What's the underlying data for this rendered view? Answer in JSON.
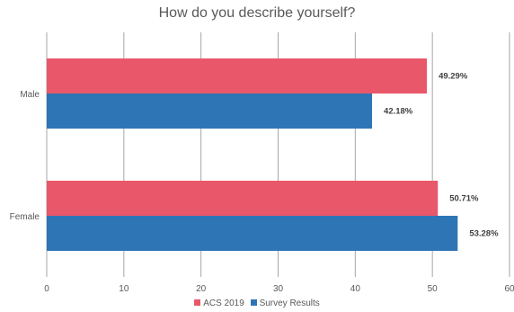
{
  "chart_data": {
    "type": "bar",
    "orientation": "horizontal",
    "title": "How do you describe yourself?",
    "categories": [
      "Male",
      "Female"
    ],
    "series": [
      {
        "name": "ACS 2019",
        "values": [
          49.29,
          50.71
        ],
        "labels": [
          "49.29%",
          "50.71%"
        ],
        "color": "#e9586a"
      },
      {
        "name": "Survey Results",
        "values": [
          42.18,
          53.28
        ],
        "labels": [
          "42.18%",
          "53.28%"
        ],
        "color": "#2e75b6"
      }
    ],
    "xlim": [
      0,
      60
    ],
    "xticks": [
      "0",
      "10",
      "20",
      "30",
      "40",
      "50",
      "60"
    ],
    "grid": "vertical",
    "legend_position": "bottom"
  }
}
